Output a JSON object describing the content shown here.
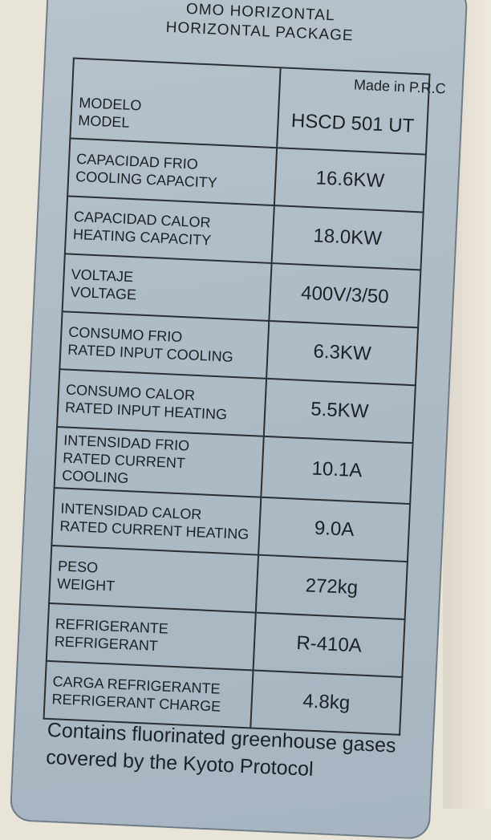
{
  "label": {
    "header_line1": "OMO HORIZONTAL",
    "header_line2": "HORIZONTAL PACKAGE",
    "made_in": "Made in P.R.C",
    "rows": [
      {
        "es": "MODELO",
        "en": "MODEL",
        "value": "HSCD 501 UT"
      },
      {
        "es": "CAPACIDAD FRIO",
        "en": "COOLING CAPACITY",
        "value": "16.6KW"
      },
      {
        "es": "CAPACIDAD CALOR",
        "en": "HEATING CAPACITY",
        "value": "18.0KW"
      },
      {
        "es": "VOLTAJE",
        "en": "VOLTAGE",
        "value": "400V/3/50"
      },
      {
        "es": "CONSUMO FRIO",
        "en": "RATED INPUT COOLING",
        "value": "6.3KW"
      },
      {
        "es": "CONSUMO CALOR",
        "en": "RATED INPUT HEATING",
        "value": "5.5KW"
      },
      {
        "es": "INTENSIDAD FRIO",
        "en": "RATED CURRENT COOLING",
        "value": "10.1A"
      },
      {
        "es": "INTENSIDAD CALOR",
        "en": "RATED CURRENT HEATING",
        "value": "9.0A"
      },
      {
        "es": "PESO",
        "en": "WEIGHT",
        "value": "272kg"
      },
      {
        "es": "REFRIGERANTE",
        "en": "REFRIGERANT",
        "value": "R-410A"
      },
      {
        "es": "CARGA REFRIGERANTE",
        "en": "REFRIGERANT CHARGE",
        "value": "4.8kg"
      }
    ],
    "footer": "Contains fluorinated greenhouse gases covered by the Kyoto Protocol"
  }
}
